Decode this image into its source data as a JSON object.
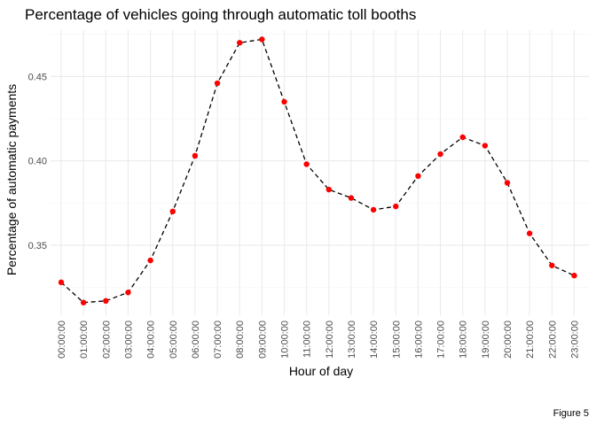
{
  "chart_data": {
    "type": "line",
    "title": "Percentage of vehicles going through automatic toll booths",
    "xlabel": "Hour of day",
    "ylabel": "Percentage of automatic payments",
    "caption": "Figure 5",
    "categories": [
      "00:00:00",
      "01:00:00",
      "02:00:00",
      "03:00:00",
      "04:00:00",
      "05:00:00",
      "06:00:00",
      "07:00:00",
      "08:00:00",
      "09:00:00",
      "10:00:00",
      "11:00:00",
      "12:00:00",
      "13:00:00",
      "14:00:00",
      "15:00:00",
      "16:00:00",
      "17:00:00",
      "18:00:00",
      "19:00:00",
      "20:00:00",
      "21:00:00",
      "22:00:00",
      "23:00:00"
    ],
    "values": [
      0.328,
      0.316,
      0.317,
      0.322,
      0.341,
      0.37,
      0.403,
      0.446,
      0.47,
      0.472,
      0.435,
      0.398,
      0.383,
      0.378,
      0.371,
      0.373,
      0.391,
      0.404,
      0.414,
      0.409,
      0.387,
      0.357,
      0.338,
      0.332
    ],
    "ylim": [
      0.3085,
      0.4775
    ],
    "yticks": [
      0.35,
      0.4,
      0.45
    ],
    "ytick_labels": [
      "0.35",
      "0.40",
      "0.45"
    ],
    "grid": true,
    "line_style": "dashed",
    "line_color": "#000000",
    "point_color": "#ff0000"
  }
}
